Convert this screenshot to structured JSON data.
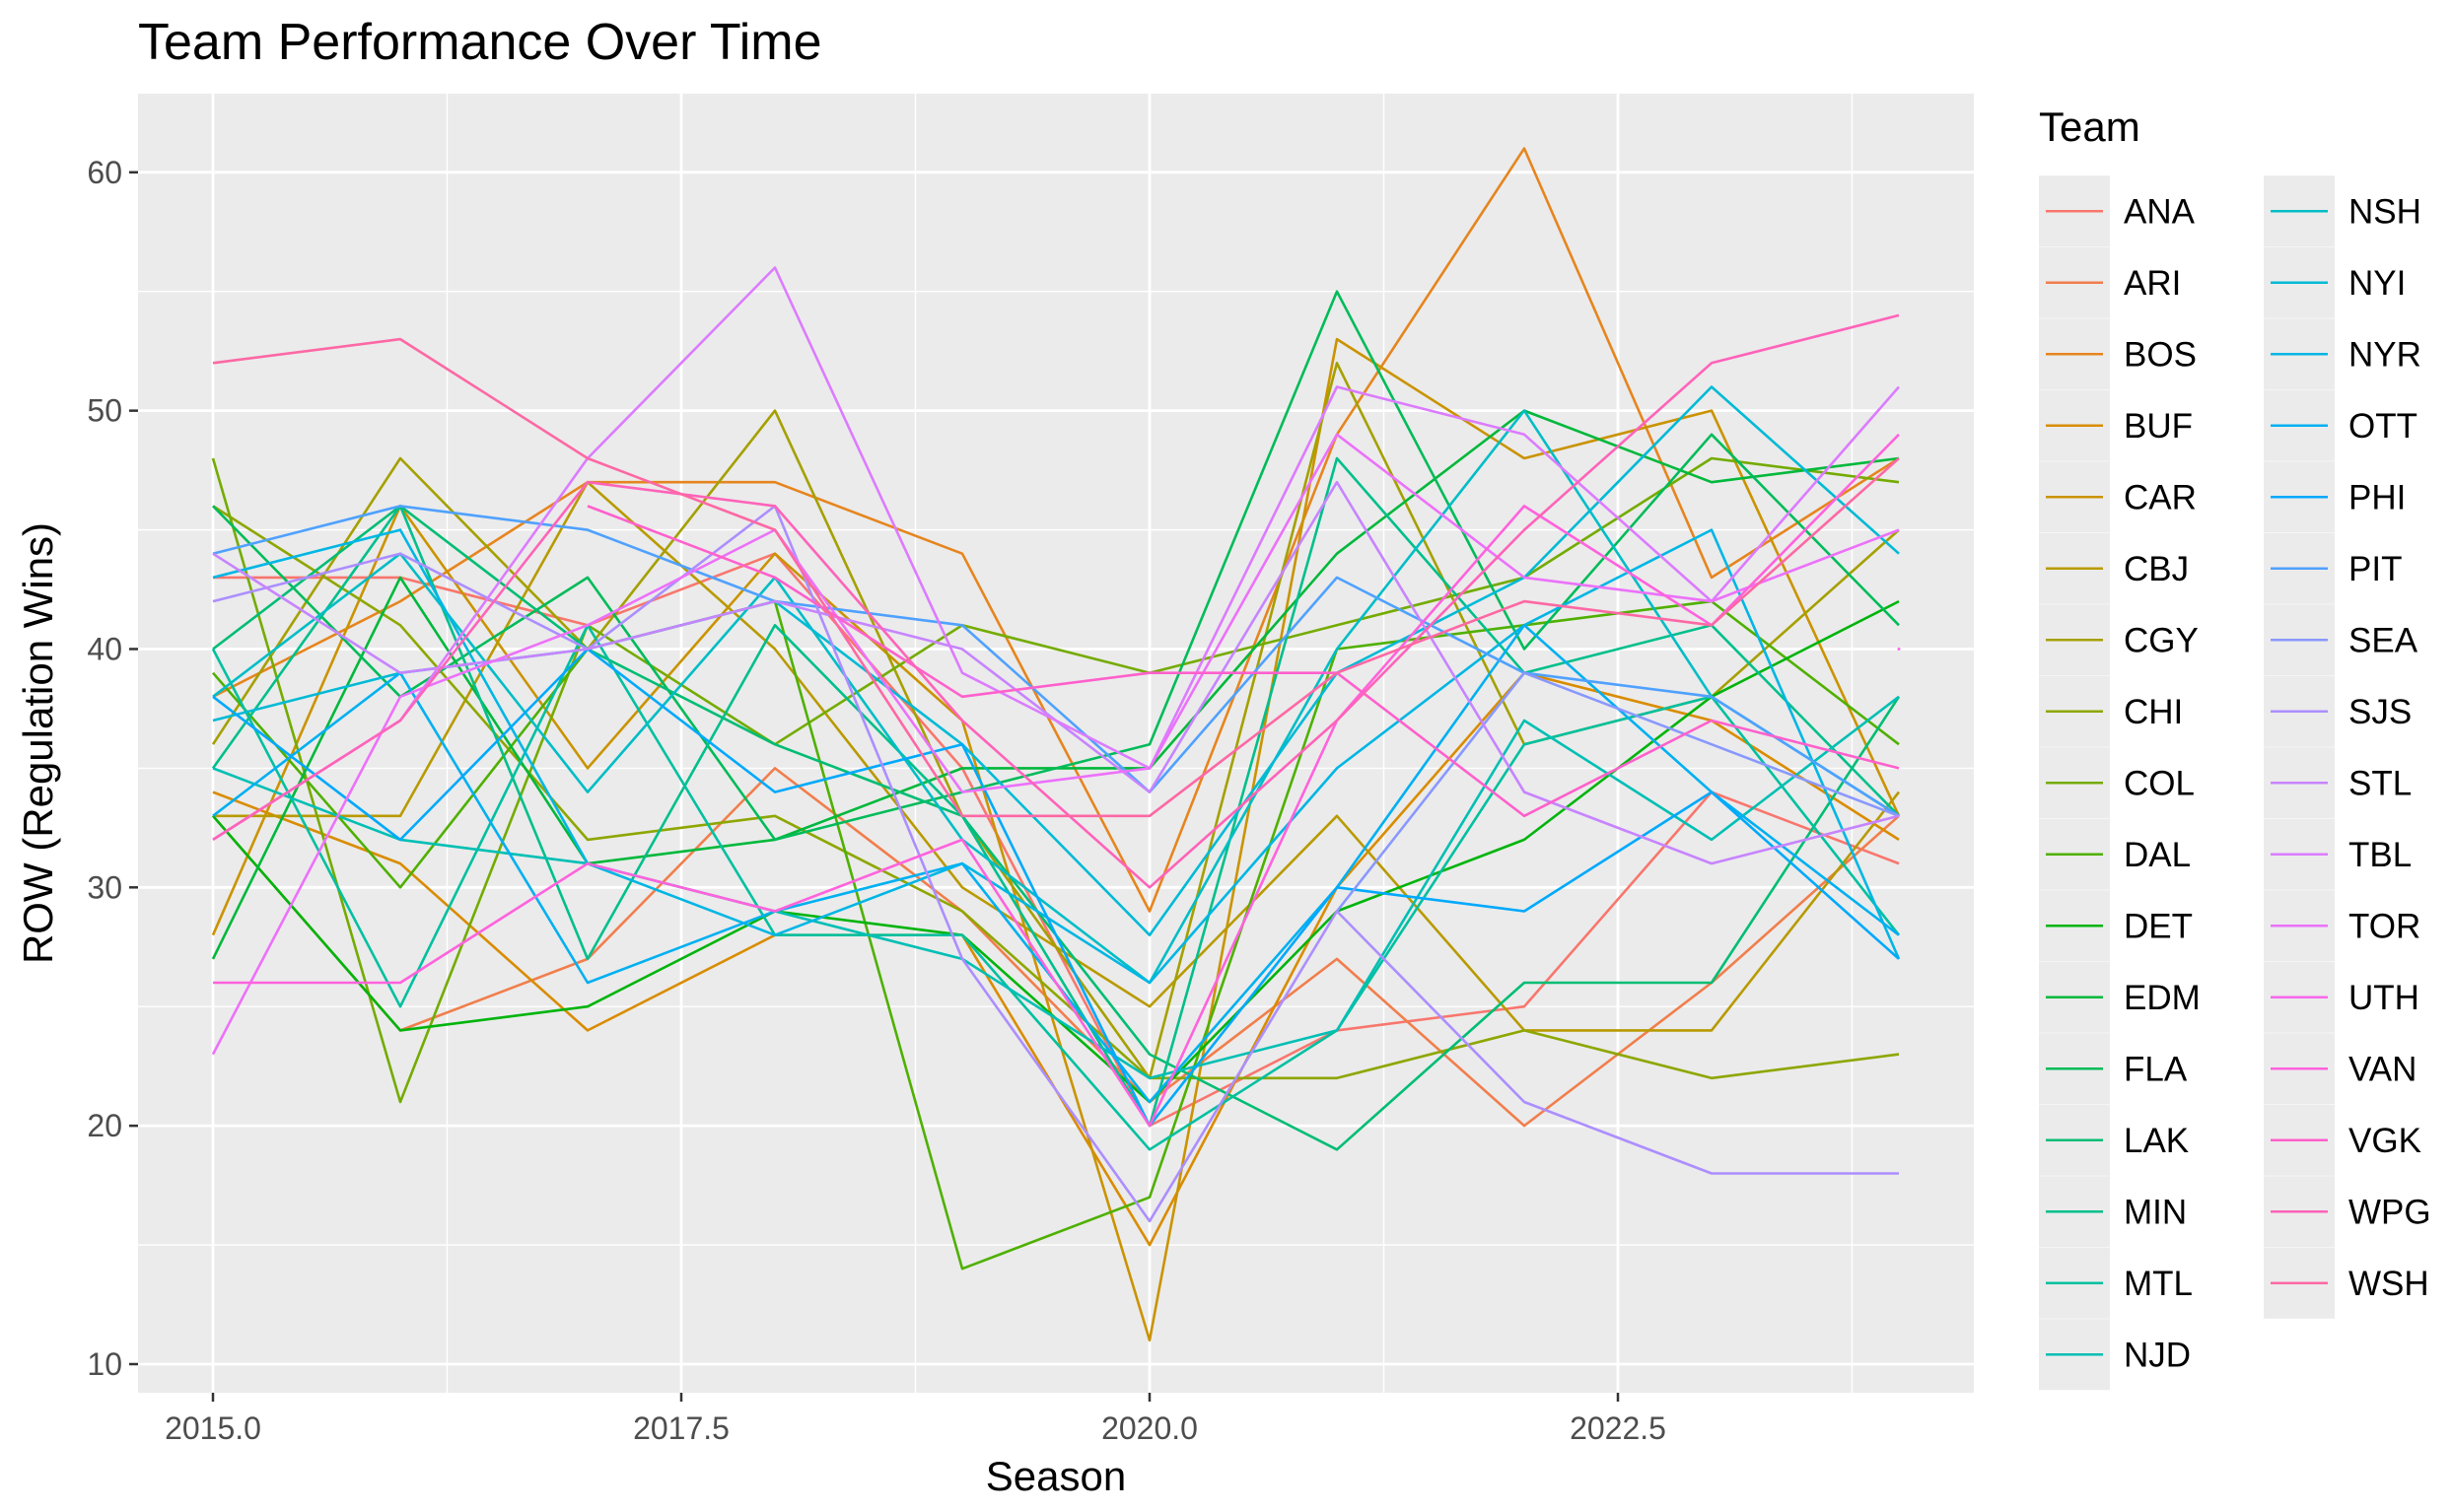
{
  "chart_data": {
    "type": "line",
    "title": "Team Performance Over Time",
    "xlabel": "Season",
    "ylabel": "ROW (Regulation Wins)",
    "xlim": [
      2014.6,
      2024.4
    ],
    "ylim": [
      8.8,
      63.3
    ],
    "x_ticks": [
      2015.0,
      2017.5,
      2020.0,
      2022.5
    ],
    "x_tick_labels": [
      "2015.0",
      "2017.5",
      "2020.0",
      "2022.5"
    ],
    "y_ticks": [
      10,
      20,
      30,
      40,
      50,
      60
    ],
    "y_tick_labels": [
      "10",
      "20",
      "30",
      "40",
      "50",
      "60"
    ],
    "grid": true,
    "legend_title": "Team",
    "legend_position": "right",
    "x": [
      2015,
      2016,
      2017,
      2018,
      2019,
      2020,
      2021,
      2022,
      2023,
      2024
    ],
    "series": [
      {
        "name": "ANA",
        "color": "#F8766D",
        "values": [
          43,
          43,
          41,
          44,
          35,
          20,
          24,
          25,
          34,
          31
        ]
      },
      {
        "name": "ARI",
        "color": "#F17E4C",
        "values": [
          33,
          24,
          27,
          35,
          29,
          21,
          27,
          20,
          26,
          33
        ]
      },
      {
        "name": "BOS",
        "color": "#E6851E",
        "values": [
          38,
          42,
          47,
          47,
          44,
          29,
          49,
          61,
          43,
          48
        ]
      },
      {
        "name": "BUF",
        "color": "#D98C00",
        "values": [
          34,
          31,
          24,
          28,
          28,
          15,
          30,
          39,
          37,
          32
        ]
      },
      {
        "name": "CAR",
        "color": "#CA9300",
        "values": [
          28,
          46,
          35,
          44,
          37,
          11,
          53,
          48,
          50,
          33
        ]
      },
      {
        "name": "CBJ",
        "color": "#B89A00",
        "values": [
          33,
          33,
          47,
          40,
          30,
          25,
          33,
          24,
          24,
          34
        ]
      },
      {
        "name": "CGY",
        "color": "#A5A000",
        "values": [
          36,
          48,
          40,
          50,
          33,
          22,
          52,
          36,
          38,
          45
        ]
      },
      {
        "name": "CHI",
        "color": "#8EA600",
        "values": [
          46,
          41,
          32,
          33,
          29,
          22,
          22,
          24,
          22,
          23
        ]
      },
      {
        "name": "COL",
        "color": "#74AB00",
        "values": [
          48,
          21,
          41,
          36,
          41,
          39,
          41,
          43,
          48,
          47
        ]
      },
      {
        "name": "DAL",
        "color": "#4FB000",
        "values": [
          39,
          30,
          40,
          42,
          14,
          17,
          40,
          41,
          42,
          36
        ]
      },
      {
        "name": "DET",
        "color": "#00B40C",
        "values": [
          33,
          24,
          25,
          29,
          28,
          21,
          29,
          32,
          38,
          42
        ]
      },
      {
        "name": "EDM",
        "color": "#00B83B",
        "values": [
          27,
          43,
          31,
          32,
          35,
          35,
          44,
          50,
          47,
          48
        ]
      },
      {
        "name": "FLA",
        "color": "#00BB59",
        "values": [
          46,
          38,
          43,
          32,
          34,
          36,
          55,
          40,
          49,
          41
        ]
      },
      {
        "name": "LAK",
        "color": "#00BD74",
        "values": [
          40,
          46,
          40,
          36,
          33,
          23,
          19,
          26,
          26,
          38
        ]
      },
      {
        "name": "MIN",
        "color": "#00BF8B",
        "values": [
          35,
          46,
          27,
          41,
          33,
          20,
          48,
          39,
          41,
          33
        ]
      },
      {
        "name": "MTL",
        "color": "#00C0A0",
        "values": [
          40,
          25,
          41,
          28,
          28,
          19,
          24,
          36,
          38,
          28
        ]
      },
      {
        "name": "NJD",
        "color": "#00BFB4",
        "values": [
          35,
          32,
          31,
          29,
          27,
          22,
          24,
          37,
          32,
          38
        ]
      },
      {
        "name": "NSH",
        "color": "#00BDC6",
        "values": [
          38,
          44,
          34,
          43,
          32,
          26,
          40,
          50,
          38,
          33
        ]
      },
      {
        "name": "NYI",
        "color": "#00BAD6",
        "values": [
          37,
          39,
          40,
          42,
          36,
          28,
          39,
          43,
          51,
          44
        ]
      },
      {
        "name": "NYR",
        "color": "#00B6E4",
        "values": [
          43,
          45,
          31,
          28,
          31,
          26,
          35,
          41,
          45,
          27
        ]
      },
      {
        "name": "OTT",
        "color": "#00B0F1",
        "values": [
          33,
          39,
          26,
          29,
          31,
          21,
          30,
          41,
          34,
          28
        ]
      },
      {
        "name": "PHI",
        "color": "#00A9FB",
        "values": [
          38,
          32,
          40,
          34,
          36,
          20,
          30,
          29,
          34,
          27
        ]
      },
      {
        "name": "PIT",
        "color": "#4FA1FF",
        "values": [
          44,
          46,
          45,
          42,
          41,
          34,
          43,
          39,
          38,
          33
        ]
      },
      {
        "name": "SEA",
        "color": "#8998FF",
        "values": [
          null,
          null,
          null,
          null,
          null,
          null,
          29,
          39,
          36,
          33
        ]
      },
      {
        "name": "SJS",
        "color": "#AC8EFF",
        "values": [
          42,
          44,
          40,
          46,
          27,
          16,
          29,
          21,
          18,
          18
        ]
      },
      {
        "name": "STL",
        "color": "#C784FF",
        "values": [
          44,
          39,
          40,
          42,
          40,
          34,
          47,
          34,
          31,
          33
        ]
      },
      {
        "name": "TBL",
        "color": "#DC7BFF",
        "values": [
          32,
          37,
          48,
          56,
          39,
          35,
          51,
          49,
          42,
          51
        ]
      },
      {
        "name": "TOR",
        "color": "#EC71FA",
        "values": [
          23,
          38,
          41,
          45,
          34,
          35,
          49,
          43,
          42,
          45
        ]
      },
      {
        "name": "UTH",
        "color": "#F868EC",
        "values": [
          null,
          null,
          null,
          null,
          null,
          null,
          null,
          null,
          null,
          40
        ]
      },
      {
        "name": "VAN",
        "color": "#FF62DD",
        "values": [
          26,
          26,
          31,
          29,
          32,
          20,
          37,
          46,
          41,
          49
        ]
      },
      {
        "name": "VGK",
        "color": "#FF60CC",
        "values": [
          null,
          null,
          46,
          43,
          38,
          39,
          39,
          33,
          37,
          35
        ]
      },
      {
        "name": "WPG",
        "color": "#FF63B9",
        "values": [
          32,
          37,
          47,
          46,
          37,
          30,
          37,
          45,
          52,
          54
        ]
      },
      {
        "name": "WSH",
        "color": "#FD68A4",
        "values": [
          52,
          53,
          48,
          45,
          33,
          33,
          39,
          42,
          41,
          48
        ]
      }
    ]
  }
}
